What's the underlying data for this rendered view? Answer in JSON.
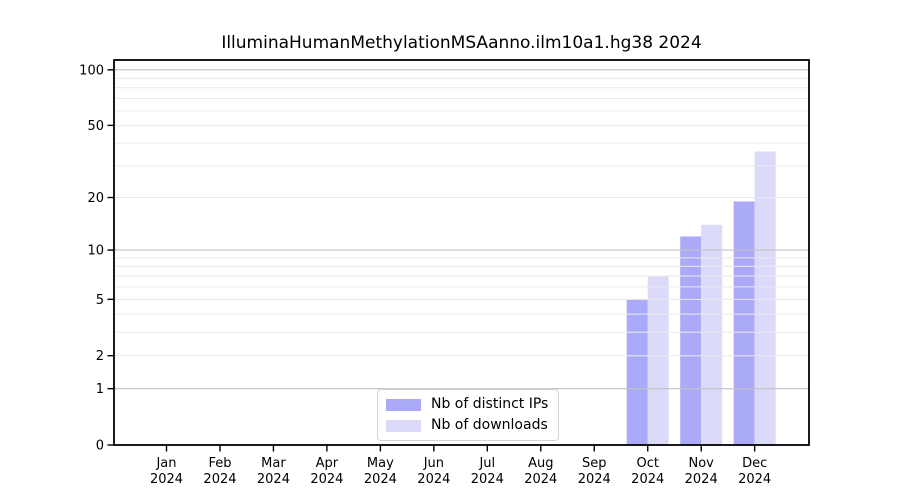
{
  "chart_data": {
    "type": "bar",
    "title": "IlluminaHumanMethylationMSAanno.ilm10a1.hg38 2024",
    "categories": [
      "Jan",
      "Feb",
      "Mar",
      "Apr",
      "May",
      "Jun",
      "Jul",
      "Aug",
      "Sep",
      "Oct",
      "Nov",
      "Dec"
    ],
    "category_year": "2024",
    "series": [
      {
        "name": "Nb of distinct IPs",
        "color": "#aaaaf8",
        "values": [
          0,
          0,
          0,
          0,
          0,
          0,
          0,
          0,
          0,
          5,
          12,
          19
        ]
      },
      {
        "name": "Nb of downloads",
        "color": "#dbdbf9",
        "values": [
          0,
          0,
          0,
          0,
          0,
          0,
          0,
          0,
          0,
          7,
          14,
          36
        ]
      }
    ],
    "y_scale": "log1p",
    "ylim": [
      0,
      113
    ],
    "y_ticks": [
      0,
      1,
      2,
      5,
      10,
      20,
      50,
      100
    ],
    "grid_major_values": [
      1,
      10,
      100
    ],
    "grid_minor_values": [
      2,
      3,
      4,
      5,
      6,
      7,
      8,
      9,
      20,
      30,
      40,
      50,
      60,
      70,
      80,
      90
    ],
    "grid": true,
    "legend_position": "bottom-center",
    "colors": {
      "axis": "#000000",
      "text": "#000000",
      "grid_major": "#c2c2c2",
      "grid_minor": "#eaeaea",
      "legend_border": "#d2d2d2",
      "background": "#ffffff"
    }
  }
}
